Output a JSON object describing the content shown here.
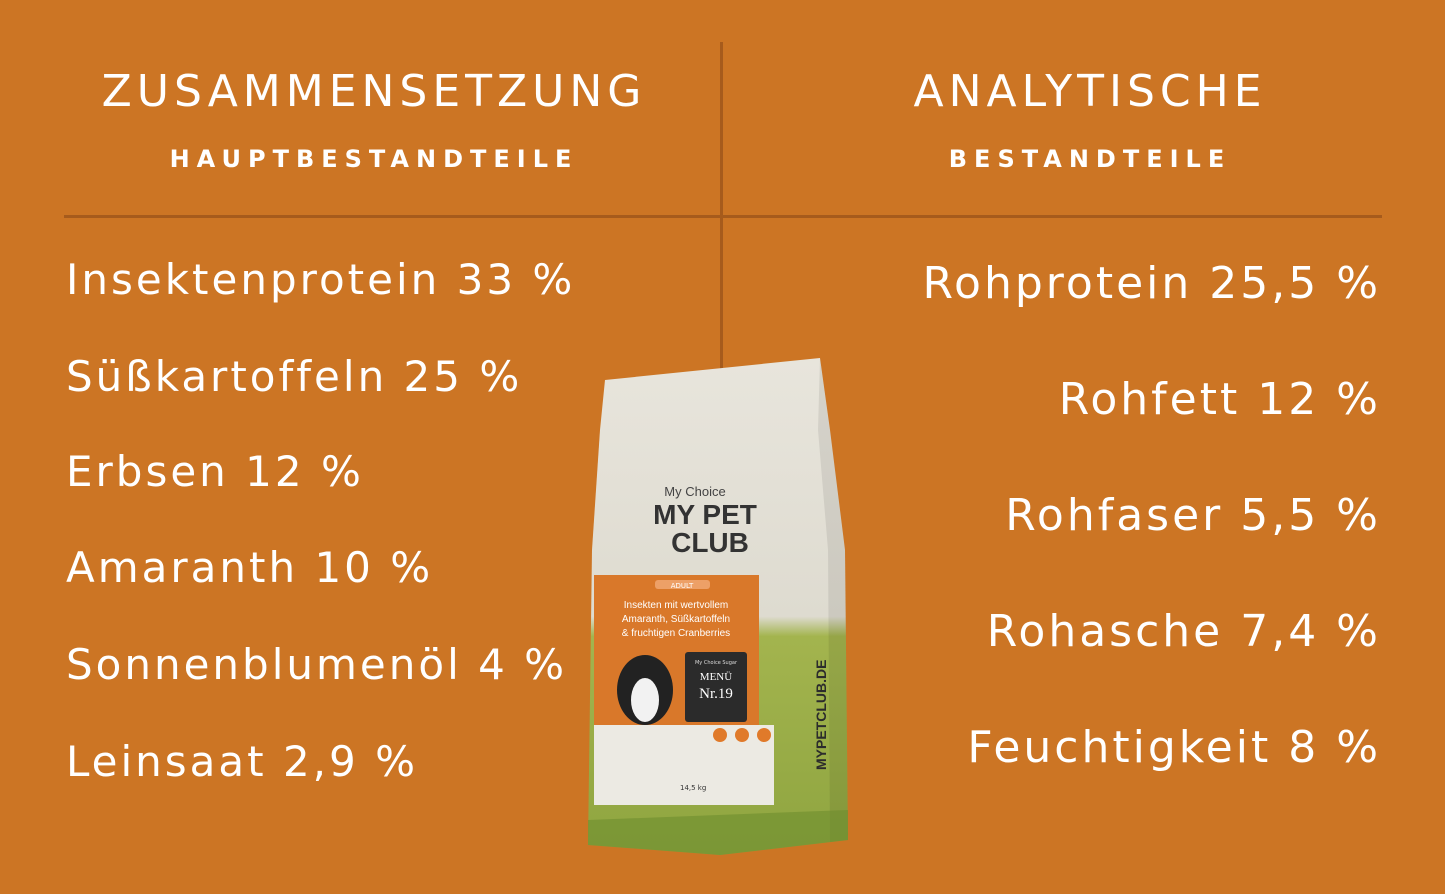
{
  "left": {
    "title": "ZUSAMMENSETZUNG",
    "subtitle": "HAUPTBESTANDTEILE",
    "items": [
      "Insektenprotein 33 %",
      "Süßkartoffeln 25 %",
      "Erbsen 12 %",
      "Amaranth 10 %",
      "Sonnenblumenöl 4 %",
      "Leinsaat 2,9 %"
    ]
  },
  "right": {
    "title": "ANALYTISCHE",
    "subtitle": "BESTANDTEILE",
    "items": [
      "Rohprotein 25,5 %",
      "Rohfett 12 %",
      "Rohfaser 5,5 %",
      "Rohasche 7,4 %",
      "Feuchtigkeit 8 %"
    ]
  },
  "product": {
    "tagline": "My Choice",
    "brand_line1": "MY PET",
    "brand_line2": "CLUB",
    "badge": "ADULT",
    "desc1": "Insekten mit wertvollem",
    "desc2": "Amaranth, Süßkartoffeln",
    "desc3": "& fruchtigen Cranberries",
    "menu_small": "My Choice Sugar",
    "menu": "MENÜ",
    "number": "Nr.19",
    "weight": "14,5 kg",
    "side_url": "MYPETCLUB.DE"
  },
  "colors": {
    "background": "#CC7524",
    "divider": "#A65B1C",
    "bag_top": "#E6E3DA",
    "bag_bottom": "#9CB04A",
    "label": "#D9782A"
  }
}
